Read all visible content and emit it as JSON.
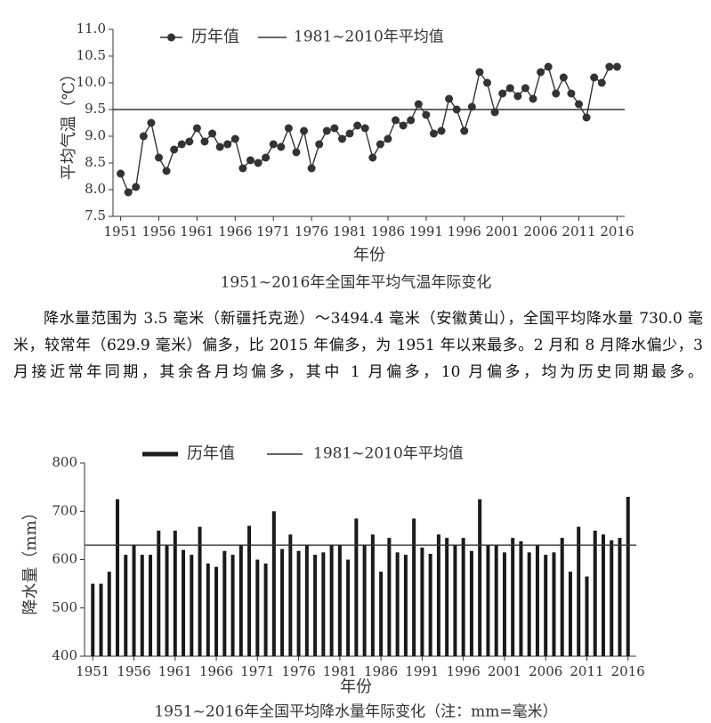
{
  "chart_data": [
    {
      "type": "line",
      "title": "1951~2016年全国年平均气温年际变化",
      "x_label": "年份",
      "y_label": "平均气温（℃）",
      "x": [
        1951,
        1952,
        1953,
        1954,
        1955,
        1956,
        1957,
        1958,
        1959,
        1960,
        1961,
        1962,
        1963,
        1964,
        1965,
        1966,
        1967,
        1968,
        1969,
        1970,
        1971,
        1972,
        1973,
        1974,
        1975,
        1976,
        1977,
        1978,
        1979,
        1980,
        1981,
        1982,
        1983,
        1984,
        1985,
        1986,
        1987,
        1988,
        1989,
        1990,
        1991,
        1992,
        1993,
        1994,
        1995,
        1996,
        1997,
        1998,
        1999,
        2000,
        2001,
        2002,
        2003,
        2004,
        2005,
        2006,
        2007,
        2008,
        2009,
        2010,
        2011,
        2012,
        2013,
        2014,
        2015,
        2016
      ],
      "series": [
        {
          "name": "历年值",
          "color": "#333333",
          "values": [
            8.3,
            7.95,
            8.05,
            9.0,
            9.25,
            8.6,
            8.35,
            8.75,
            8.85,
            8.9,
            9.15,
            8.9,
            9.05,
            8.8,
            8.85,
            8.95,
            8.4,
            8.55,
            8.5,
            8.6,
            8.85,
            8.8,
            9.15,
            8.7,
            9.1,
            8.4,
            8.85,
            9.1,
            9.15,
            8.95,
            9.05,
            9.2,
            9.15,
            8.6,
            8.85,
            8.95,
            9.3,
            9.2,
            9.3,
            9.6,
            9.4,
            9.05,
            9.1,
            9.7,
            9.5,
            9.1,
            9.55,
            10.2,
            10.0,
            9.45,
            9.8,
            9.9,
            9.75,
            9.9,
            9.7,
            10.2,
            10.3,
            9.8,
            10.1,
            9.8,
            9.6,
            9.35,
            10.1,
            10.0,
            10.3,
            10.3
          ]
        }
      ],
      "reference_line": {
        "name": "1981~2010年平均值",
        "value": 9.5,
        "color": "#333333"
      },
      "xlim": [
        1950,
        2017
      ],
      "xticks": [
        1951,
        1956,
        1961,
        1966,
        1971,
        1976,
        1981,
        1986,
        1991,
        1996,
        2001,
        2006,
        2011,
        2016
      ],
      "ylim": [
        7.5,
        11.0
      ],
      "yticks": [
        7.5,
        {
          "value": 8,
          "label": "8.0"
        },
        8.5,
        {
          "value": 9,
          "label": "9.0"
        },
        9.5,
        {
          "value": 10,
          "label": "10.0"
        },
        10.5,
        {
          "value": 11,
          "label": "11.0"
        }
      ]
    },
    {
      "type": "bar",
      "title": "1951~2016年全国平均降水量年际变化（注：mm=毫米）",
      "x_label": "年份",
      "y_label": "降水量（mm）",
      "x": [
        1951,
        1952,
        1953,
        1954,
        1955,
        1956,
        1957,
        1958,
        1959,
        1960,
        1961,
        1962,
        1963,
        1964,
        1965,
        1966,
        1967,
        1968,
        1969,
        1970,
        1971,
        1972,
        1973,
        1974,
        1975,
        1976,
        1977,
        1978,
        1979,
        1980,
        1981,
        1982,
        1983,
        1984,
        1985,
        1986,
        1987,
        1988,
        1989,
        1990,
        1991,
        1992,
        1993,
        1994,
        1995,
        1996,
        1997,
        1998,
        1999,
        2000,
        2001,
        2002,
        2003,
        2004,
        2005,
        2006,
        2007,
        2008,
        2009,
        2010,
        2011,
        2012,
        2013,
        2014,
        2015,
        2016
      ],
      "series": [
        {
          "name": "历年值",
          "color": "#1a1a1a",
          "values": [
            550,
            550,
            575,
            725,
            610,
            630,
            610,
            610,
            660,
            630,
            660,
            620,
            610,
            668,
            592,
            585,
            618,
            610,
            630,
            670,
            600,
            592,
            700,
            622,
            652,
            618,
            630,
            610,
            615,
            630,
            630,
            600,
            685,
            630,
            652,
            575,
            645,
            615,
            610,
            685,
            625,
            612,
            652,
            645,
            630,
            645,
            618,
            725,
            630,
            630,
            615,
            645,
            638,
            615,
            630,
            610,
            615,
            645,
            575,
            668,
            565,
            660,
            652,
            640,
            645,
            730
          ]
        }
      ],
      "reference_line": {
        "name": "1981~2010年平均值",
        "value": 630,
        "color": "#333333"
      },
      "xlim": [
        1950,
        2017
      ],
      "xticks": [
        1951,
        1956,
        1961,
        1966,
        1971,
        1976,
        1981,
        1986,
        1991,
        1996,
        2001,
        2006,
        2011,
        2016
      ],
      "ylim": [
        400,
        800
      ],
      "yticks": [
        400,
        500,
        600,
        700,
        800
      ]
    }
  ],
  "paragraph": "降水量范围为 3.5 毫米（新疆托克逊）～3494.4 毫米（安徽黄山），全国平均降水量 730.0 毫米，较常年（629.9 毫米）偏多，比 2015 年偏多，为 1951 年以来最多。2 月和 8 月降水偏少，3 月接近常年同期，其余各月均偏多，其中 1 月偏多，10 月偏多，均为历史同期最多。"
}
